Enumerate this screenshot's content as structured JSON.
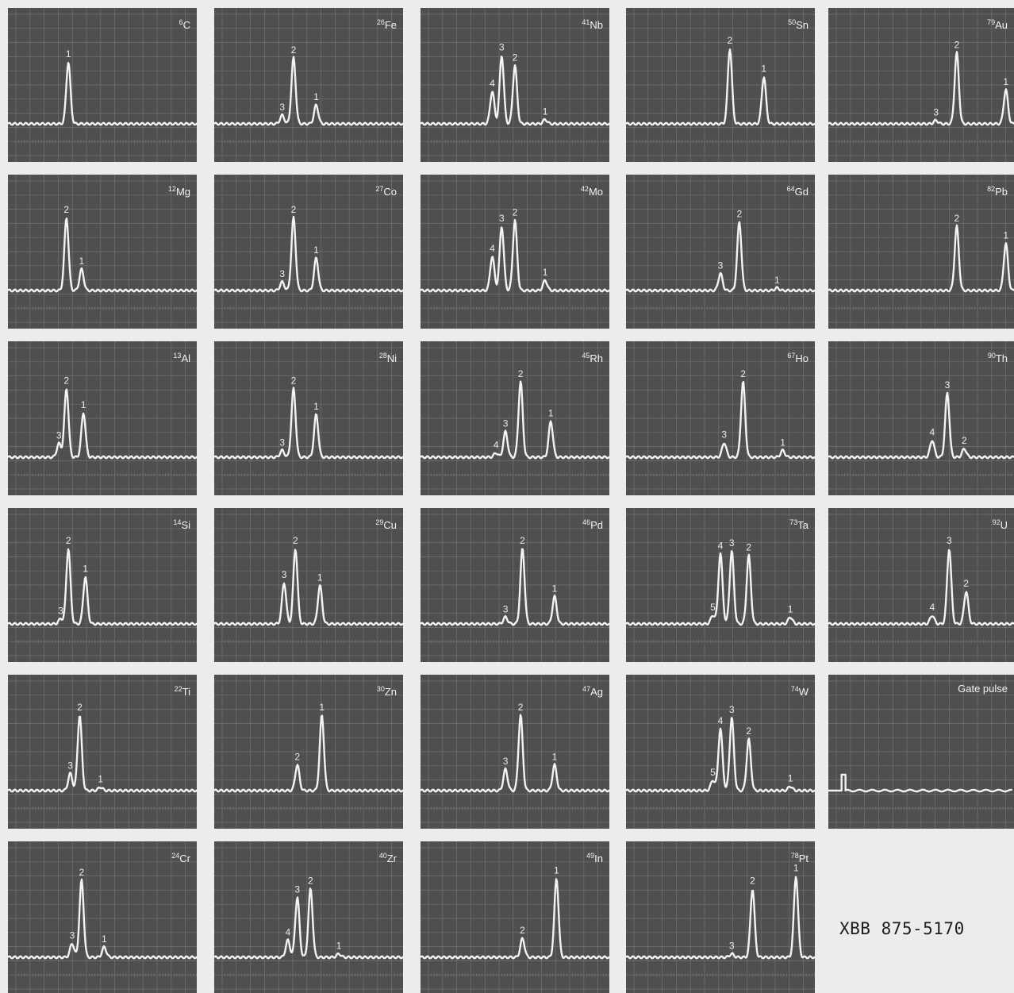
{
  "colors": {
    "background": "#ececec",
    "screen": "#4f4f4f",
    "graticule": "#727272",
    "trace": "#f3f3f3"
  },
  "catalog_number": "XBB 875-5170",
  "panels": [
    {
      "z": "6",
      "element": "C",
      "peaks": [
        {
          "label": "1",
          "x": 0.32,
          "h": 0.72
        }
      ]
    },
    {
      "z": "26",
      "element": "Fe",
      "peaks": [
        {
          "label": "3",
          "x": 0.36,
          "h": 0.1
        },
        {
          "label": "2",
          "x": 0.42,
          "h": 0.77
        },
        {
          "label": "1",
          "x": 0.54,
          "h": 0.22
        }
      ]
    },
    {
      "z": "41",
      "element": "Nb",
      "peaks": [
        {
          "label": "4",
          "x": 0.38,
          "h": 0.38
        },
        {
          "label": "3",
          "x": 0.43,
          "h": 0.8
        },
        {
          "label": "2",
          "x": 0.5,
          "h": 0.68
        },
        {
          "label": "1",
          "x": 0.66,
          "h": 0.05
        }
      ]
    },
    {
      "z": "50",
      "element": "Sn",
      "peaks": [
        {
          "label": "2",
          "x": 0.55,
          "h": 0.88
        },
        {
          "label": "1",
          "x": 0.73,
          "h": 0.55
        }
      ]
    },
    {
      "z": "79",
      "element": "Au",
      "peaks": [
        {
          "label": "3",
          "x": 0.57,
          "h": 0.04
        },
        {
          "label": "2",
          "x": 0.68,
          "h": 0.83
        },
        {
          "label": "1",
          "x": 0.94,
          "h": 0.4
        }
      ]
    },
    {
      "z": "12",
      "element": "Mg",
      "peaks": [
        {
          "label": "2",
          "x": 0.31,
          "h": 0.85
        },
        {
          "label": "1",
          "x": 0.39,
          "h": 0.25
        }
      ]
    },
    {
      "z": "27",
      "element": "Co",
      "peaks": [
        {
          "label": "3",
          "x": 0.36,
          "h": 0.1
        },
        {
          "label": "2",
          "x": 0.42,
          "h": 0.85
        },
        {
          "label": "1",
          "x": 0.54,
          "h": 0.38
        }
      ]
    },
    {
      "z": "42",
      "element": "Mo",
      "peaks": [
        {
          "label": "4",
          "x": 0.38,
          "h": 0.4
        },
        {
          "label": "3",
          "x": 0.43,
          "h": 0.75
        },
        {
          "label": "2",
          "x": 0.5,
          "h": 0.82
        },
        {
          "label": "1",
          "x": 0.66,
          "h": 0.12
        }
      ]
    },
    {
      "z": "64",
      "element": "Gd",
      "peaks": [
        {
          "label": "3",
          "x": 0.5,
          "h": 0.2
        },
        {
          "label": "2",
          "x": 0.6,
          "h": 0.8
        },
        {
          "label": "1",
          "x": 0.8,
          "h": 0.03
        }
      ]
    },
    {
      "z": "82",
      "element": "Pb",
      "peaks": [
        {
          "label": "2",
          "x": 0.68,
          "h": 0.75
        },
        {
          "label": "1",
          "x": 0.94,
          "h": 0.55
        }
      ]
    },
    {
      "z": "13",
      "element": "Al",
      "peaks": [
        {
          "label": "3",
          "x": 0.27,
          "h": 0.16
        },
        {
          "label": "2",
          "x": 0.31,
          "h": 0.8
        },
        {
          "label": "1",
          "x": 0.4,
          "h": 0.52
        }
      ]
    },
    {
      "z": "28",
      "element": "Ni",
      "peaks": [
        {
          "label": "3",
          "x": 0.36,
          "h": 0.08
        },
        {
          "label": "2",
          "x": 0.42,
          "h": 0.8
        },
        {
          "label": "1",
          "x": 0.54,
          "h": 0.5
        }
      ]
    },
    {
      "z": "45",
      "element": "Rh",
      "peaks": [
        {
          "label": "4",
          "x": 0.4,
          "h": 0.05
        },
        {
          "label": "3",
          "x": 0.45,
          "h": 0.3
        },
        {
          "label": "2",
          "x": 0.53,
          "h": 0.88
        },
        {
          "label": "1",
          "x": 0.69,
          "h": 0.42
        }
      ]
    },
    {
      "z": "67",
      "element": "Ho",
      "peaks": [
        {
          "label": "3",
          "x": 0.52,
          "h": 0.17
        },
        {
          "label": "2",
          "x": 0.62,
          "h": 0.88
        },
        {
          "label": "1",
          "x": 0.83,
          "h": 0.08
        }
      ]
    },
    {
      "z": "90",
      "element": "Th",
      "peaks": [
        {
          "label": "4",
          "x": 0.55,
          "h": 0.2
        },
        {
          "label": "3",
          "x": 0.63,
          "h": 0.75
        },
        {
          "label": "2",
          "x": 0.72,
          "h": 0.1
        }
      ]
    },
    {
      "z": "14",
      "element": "Si",
      "peaks": [
        {
          "label": "3",
          "x": 0.28,
          "h": 0.06
        },
        {
          "label": "2",
          "x": 0.32,
          "h": 0.88
        },
        {
          "label": "1",
          "x": 0.41,
          "h": 0.55
        }
      ]
    },
    {
      "z": "29",
      "element": "Cu",
      "peaks": [
        {
          "label": "3",
          "x": 0.37,
          "h": 0.48
        },
        {
          "label": "2",
          "x": 0.43,
          "h": 0.88
        },
        {
          "label": "1",
          "x": 0.56,
          "h": 0.45
        }
      ]
    },
    {
      "z": "46",
      "element": "Pd",
      "peaks": [
        {
          "label": "3",
          "x": 0.45,
          "h": 0.08
        },
        {
          "label": "2",
          "x": 0.54,
          "h": 0.88
        },
        {
          "label": "1",
          "x": 0.71,
          "h": 0.32
        }
      ]
    },
    {
      "z": "73",
      "element": "Ta",
      "peaks": [
        {
          "label": "5",
          "x": 0.46,
          "h": 0.1
        },
        {
          "label": "4",
          "x": 0.5,
          "h": 0.82
        },
        {
          "label": "3",
          "x": 0.56,
          "h": 0.85
        },
        {
          "label": "2",
          "x": 0.65,
          "h": 0.8
        },
        {
          "label": "1",
          "x": 0.87,
          "h": 0.08
        }
      ]
    },
    {
      "z": "92",
      "element": "U",
      "peaks": [
        {
          "label": "4",
          "x": 0.55,
          "h": 0.1
        },
        {
          "label": "3",
          "x": 0.64,
          "h": 0.88
        },
        {
          "label": "2",
          "x": 0.73,
          "h": 0.38
        }
      ]
    },
    {
      "z": "22",
      "element": "Ti",
      "peaks": [
        {
          "label": "3",
          "x": 0.33,
          "h": 0.2
        },
        {
          "label": "2",
          "x": 0.38,
          "h": 0.88
        },
        {
          "label": "1",
          "x": 0.49,
          "h": 0.04
        }
      ]
    },
    {
      "z": "30",
      "element": "Zn",
      "peaks": [
        {
          "label": "2",
          "x": 0.44,
          "h": 0.3
        },
        {
          "label": "1",
          "x": 0.57,
          "h": 0.88
        }
      ]
    },
    {
      "z": "47",
      "element": "Ag",
      "peaks": [
        {
          "label": "3",
          "x": 0.45,
          "h": 0.25
        },
        {
          "label": "2",
          "x": 0.53,
          "h": 0.88
        },
        {
          "label": "1",
          "x": 0.71,
          "h": 0.3
        }
      ]
    },
    {
      "z": "74",
      "element": "W",
      "peaks": [
        {
          "label": "5",
          "x": 0.46,
          "h": 0.12
        },
        {
          "label": "4",
          "x": 0.5,
          "h": 0.72
        },
        {
          "label": "3",
          "x": 0.56,
          "h": 0.85
        },
        {
          "label": "2",
          "x": 0.65,
          "h": 0.6
        },
        {
          "label": "1",
          "x": 0.87,
          "h": 0.05
        }
      ]
    },
    {
      "title": "Gate pulse",
      "gate": true,
      "peaks": []
    },
    {
      "z": "24",
      "element": "Cr",
      "peaks": [
        {
          "label": "3",
          "x": 0.34,
          "h": 0.16
        },
        {
          "label": "2",
          "x": 0.39,
          "h": 0.9
        },
        {
          "label": "1",
          "x": 0.51,
          "h": 0.12
        }
      ]
    },
    {
      "z": "40",
      "element": "Zr",
      "peaks": [
        {
          "label": "4",
          "x": 0.39,
          "h": 0.2
        },
        {
          "label": "3",
          "x": 0.44,
          "h": 0.7
        },
        {
          "label": "2",
          "x": 0.51,
          "h": 0.8
        },
        {
          "label": "1",
          "x": 0.66,
          "h": 0.04
        }
      ]
    },
    {
      "z": "49",
      "element": "In",
      "peaks": [
        {
          "label": "2",
          "x": 0.54,
          "h": 0.22
        },
        {
          "label": "1",
          "x": 0.72,
          "h": 0.92
        }
      ]
    },
    {
      "z": "78",
      "element": "Pt",
      "peaks": [
        {
          "label": "3",
          "x": 0.56,
          "h": 0.04
        },
        {
          "label": "2",
          "x": 0.67,
          "h": 0.8
        },
        {
          "label": "1",
          "x": 0.9,
          "h": 0.95
        }
      ]
    }
  ]
}
